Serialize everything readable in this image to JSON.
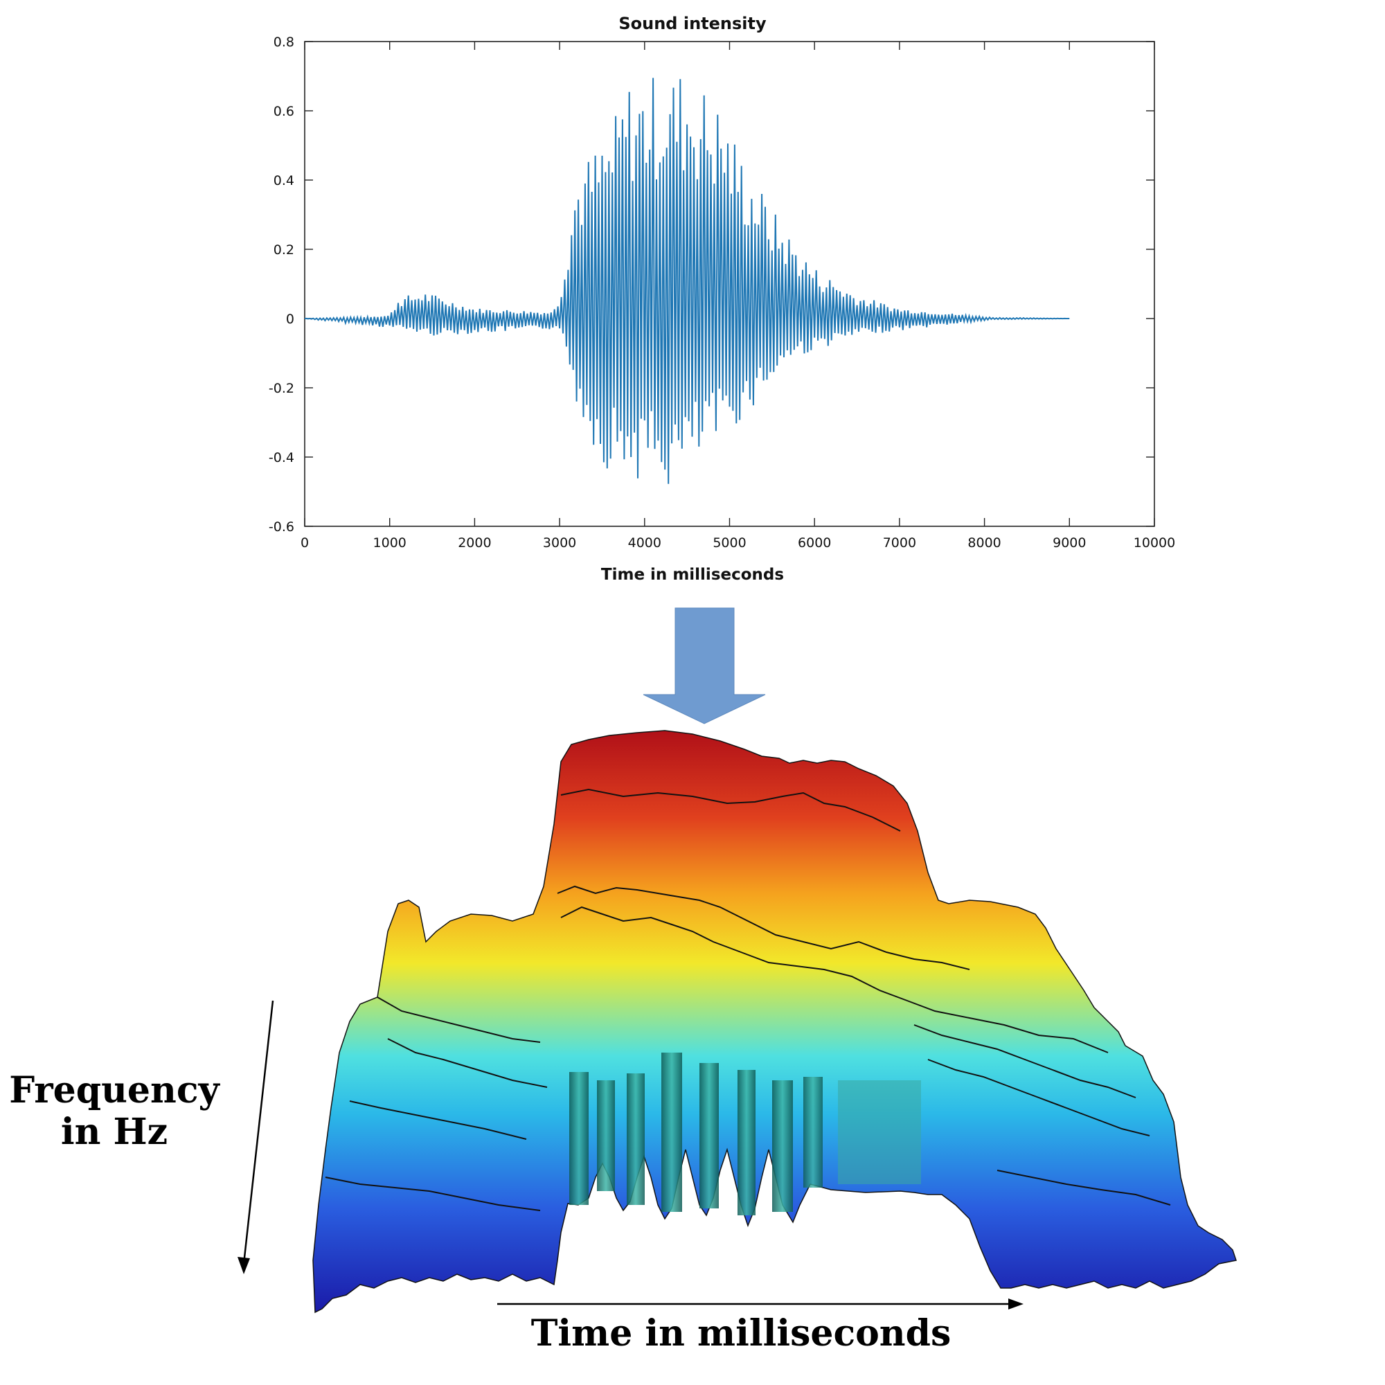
{
  "chart_data": [
    {
      "type": "line",
      "title": "Sound intensity",
      "xlabel": "Time in milliseconds",
      "ylabel": "",
      "xlim": [
        0,
        10000
      ],
      "ylim": [
        -0.6,
        0.8
      ],
      "x_ticks": [
        "0",
        "1000",
        "2000",
        "3000",
        "4000",
        "5000",
        "6000",
        "7000",
        "8000",
        "9000",
        "10000"
      ],
      "y_ticks": [
        "0.8",
        "0.6",
        "0.4",
        "0.2",
        "0",
        "-0.2",
        "-0.4",
        "-0.6"
      ],
      "series": [
        {
          "color": "#1f77b4",
          "envelope_peaks": [
            {
              "x": 0,
              "y": 0
            },
            {
              "x": 700,
              "y": 0.005
            },
            {
              "x": 1000,
              "y": 0.01
            },
            {
              "x": 1100,
              "y": 0.06
            },
            {
              "x": 1400,
              "y": 0.08
            },
            {
              "x": 2000,
              "y": 0.03
            },
            {
              "x": 2900,
              "y": 0.02
            },
            {
              "x": 3000,
              "y": 0.07
            },
            {
              "x": 3200,
              "y": 0.43
            },
            {
              "x": 3600,
              "y": 0.55
            },
            {
              "x": 3800,
              "y": 0.69
            },
            {
              "x": 4300,
              "y": 0.72
            },
            {
              "x": 4500,
              "y": 0.73
            },
            {
              "x": 4900,
              "y": 0.62
            },
            {
              "x": 5200,
              "y": 0.45
            },
            {
              "x": 5600,
              "y": 0.28
            },
            {
              "x": 6000,
              "y": 0.15
            },
            {
              "x": 6500,
              "y": 0.07
            },
            {
              "x": 7000,
              "y": 0.03
            },
            {
              "x": 8100,
              "y": 0.003
            },
            {
              "x": 9000,
              "y": 0
            }
          ],
          "envelope_troughs": [
            {
              "x": 0,
              "y": 0
            },
            {
              "x": 1100,
              "y": -0.03
            },
            {
              "x": 1500,
              "y": -0.05
            },
            {
              "x": 3000,
              "y": -0.03
            },
            {
              "x": 3200,
              "y": -0.25
            },
            {
              "x": 3500,
              "y": -0.43
            },
            {
              "x": 4000,
              "y": -0.47
            },
            {
              "x": 4300,
              "y": -0.5
            },
            {
              "x": 4800,
              "y": -0.38
            },
            {
              "x": 5200,
              "y": -0.28
            },
            {
              "x": 5700,
              "y": -0.12
            },
            {
              "x": 6500,
              "y": -0.05
            },
            {
              "x": 8100,
              "y": -0.003
            },
            {
              "x": 9000,
              "y": 0
            }
          ]
        }
      ]
    }
  ],
  "diagram": {
    "arrow_color": "#6f9bd0",
    "surface_colors": [
      "#1a1aa8",
      "#2a5ee0",
      "#2bb8e8",
      "#4fe0e0",
      "#f2e82a",
      "#f5a21e",
      "#e0401e",
      "#b01018"
    ],
    "frequency_label_line1": "Frequency",
    "frequency_label_line2": "in Hz",
    "time_label": "Time in milliseconds"
  }
}
